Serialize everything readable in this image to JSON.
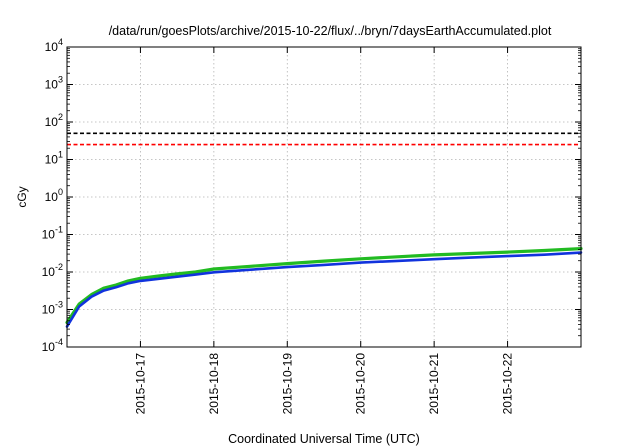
{
  "chart_data": {
    "type": "line",
    "title": "/data/run/goesPlots/archive/2015-10-22/flux/../bryn/7daysEarthAccumulated.plot",
    "xlabel": "Coordinated Universal Time (UTC)",
    "ylabel": "cGy",
    "yscale": "log",
    "ylim": [
      0.0001,
      10000
    ],
    "xlim": [
      "2015-10-16T00:00",
      "2015-10-23T00:00"
    ],
    "grid": true,
    "y_ticks": [
      {
        "value": 0.0001,
        "base": "10",
        "exp": "-4"
      },
      {
        "value": 0.001,
        "base": "10",
        "exp": "-3"
      },
      {
        "value": 0.01,
        "base": "10",
        "exp": "-2"
      },
      {
        "value": 0.1,
        "base": "10",
        "exp": "-1"
      },
      {
        "value": 1,
        "base": "10",
        "exp": "0"
      },
      {
        "value": 10,
        "base": "10",
        "exp": "1"
      },
      {
        "value": 100,
        "base": "10",
        "exp": "2"
      },
      {
        "value": 1000,
        "base": "10",
        "exp": "3"
      },
      {
        "value": 10000,
        "base": "10",
        "exp": "4"
      }
    ],
    "x_ticks": [
      "2015-10-17",
      "2015-10-18",
      "2015-10-19",
      "2015-10-20",
      "2015-10-21",
      "2015-10-22"
    ],
    "reference_lines": [
      {
        "value": 50,
        "color": "#000000",
        "style": "dashed"
      },
      {
        "value": 25,
        "color": "#ff0000",
        "style": "dashed"
      }
    ],
    "series": [
      {
        "color": "#22bb22",
        "x": [
          "2015-10-16T00:00",
          "2015-10-16T04:00",
          "2015-10-16T08:00",
          "2015-10-16T12:00",
          "2015-10-16T16:00",
          "2015-10-16T20:00",
          "2015-10-17T00:00",
          "2015-10-17T06:00",
          "2015-10-17T12:00",
          "2015-10-17T18:00",
          "2015-10-18T00:00",
          "2015-10-18T12:00",
          "2015-10-19T00:00",
          "2015-10-19T12:00",
          "2015-10-20T00:00",
          "2015-10-20T12:00",
          "2015-10-21T00:00",
          "2015-10-21T12:00",
          "2015-10-22T00:00",
          "2015-10-22T12:00",
          "2015-10-23T00:00"
        ],
        "y": [
          0.00045,
          0.0014,
          0.0025,
          0.0037,
          0.0045,
          0.0058,
          0.0068,
          0.0078,
          0.0089,
          0.01,
          0.012,
          0.0142,
          0.0168,
          0.0195,
          0.0225,
          0.0255,
          0.0285,
          0.0312,
          0.034,
          0.0375,
          0.042
        ]
      },
      {
        "color": "#1133dd",
        "x": [
          "2015-10-16T00:00",
          "2015-10-16T04:00",
          "2015-10-16T08:00",
          "2015-10-16T12:00",
          "2015-10-16T16:00",
          "2015-10-16T20:00",
          "2015-10-17T00:00",
          "2015-10-17T06:00",
          "2015-10-17T12:00",
          "2015-10-17T18:00",
          "2015-10-18T00:00",
          "2015-10-18T12:00",
          "2015-10-19T00:00",
          "2015-10-19T12:00",
          "2015-10-20T00:00",
          "2015-10-20T12:00",
          "2015-10-21T00:00",
          "2015-10-21T12:00",
          "2015-10-22T00:00",
          "2015-10-22T12:00",
          "2015-10-23T00:00"
        ],
        "y": [
          0.00035,
          0.0012,
          0.0022,
          0.0032,
          0.0039,
          0.005,
          0.0058,
          0.0066,
          0.0075,
          0.0085,
          0.0098,
          0.0115,
          0.0135,
          0.0155,
          0.0178,
          0.0198,
          0.022,
          0.0242,
          0.0265,
          0.029,
          0.033
        ]
      }
    ]
  }
}
